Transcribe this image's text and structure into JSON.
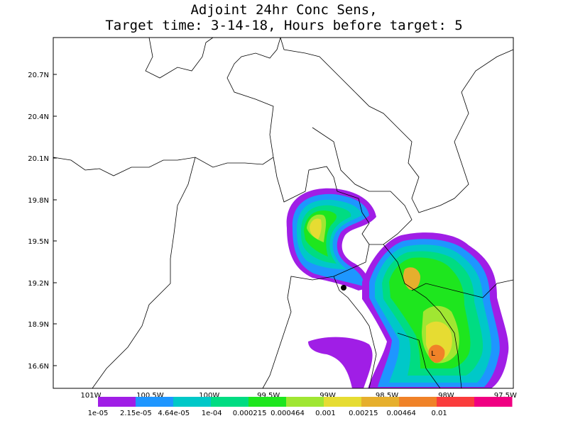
{
  "header": {
    "title_line1": "Adjoint 24hr Conc Sens,",
    "title_line2": "Target time: 3-14-18, Hours before target: 5"
  },
  "map": {
    "lat_labels": [
      "20.7N",
      "20.4N",
      "20.1N",
      "19.8N",
      "19.5N",
      "19.2N",
      "18.9N",
      "16.6N"
    ],
    "lon_labels": [
      "101W",
      "100.5W",
      "100W",
      "99.5W",
      "99W",
      "98.5W",
      "98W",
      "97.5W"
    ],
    "low_marker": "L"
  },
  "colorbar": {
    "labels": [
      "1e-05",
      "2.15e-05",
      "4.64e-05",
      "1e-04",
      "0.000215",
      "0.000464",
      "0.001",
      "0.00215",
      "0.00464",
      "0.01"
    ],
    "colors": [
      "#a01ee6",
      "#1e96ff",
      "#00c8c8",
      "#00dc82",
      "#1ee61e",
      "#a0e632",
      "#e6dc32",
      "#e6af2d",
      "#f08228",
      "#fa3c3c",
      "#f00082"
    ]
  }
}
